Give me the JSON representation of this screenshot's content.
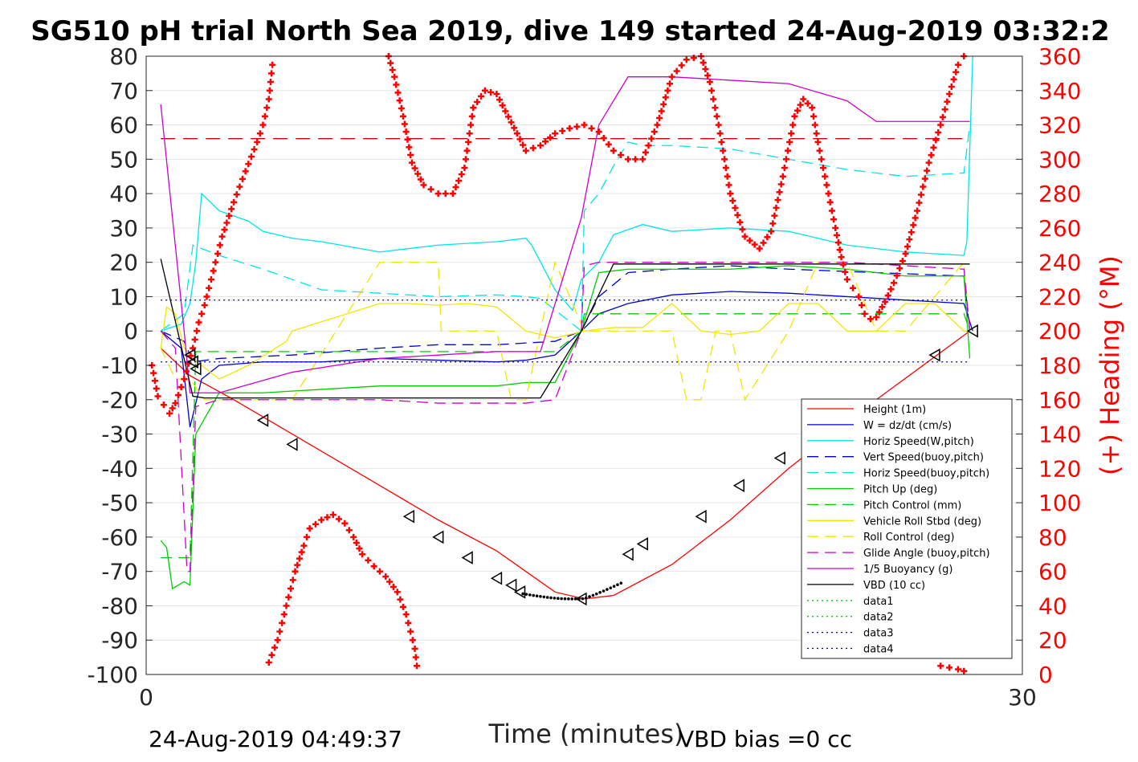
{
  "chart_data": {
    "type": "line",
    "title": "SG510 pH trial North Sea 2019, dive 149 started 24-Aug-2019 03:32:2",
    "xlabel": "Time (minutes)",
    "ylabel_right": "(+) Heading (°M)",
    "footer_left": "24-Aug-2019 04:49:37",
    "footer_right": "VBD bias =0 cc",
    "xlim": [
      0,
      30
    ],
    "ylim_left": [
      -100,
      80
    ],
    "ylim_right": [
      0,
      360
    ],
    "x_ticks": [
      0,
      30
    ],
    "y_ticks_left": [
      80,
      70,
      60,
      50,
      40,
      30,
      20,
      10,
      0,
      -10,
      -20,
      -30,
      -40,
      -50,
      -60,
      -70,
      -80,
      -90,
      -100
    ],
    "y_ticks_right": [
      360,
      340,
      320,
      300,
      280,
      260,
      240,
      220,
      200,
      180,
      160,
      140,
      120,
      100,
      80,
      60,
      40,
      20,
      0
    ],
    "grid": true,
    "legend_position": "bottom-right",
    "colors": {
      "red": "#ff0000",
      "blue": "#0000cc",
      "cyan": "#00e5e5",
      "green": "#00cc00",
      "yellow": "#f2e600",
      "magenta": "#cc00cc",
      "black": "#000000"
    },
    "series": [
      {
        "name": "Height (1m)",
        "color": "#ff0000",
        "style": "solid",
        "x": [
          0.5,
          1.5,
          3,
          5,
          8,
          10,
          12,
          13,
          14,
          15,
          16,
          18,
          20,
          22,
          25,
          28.2
        ],
        "y": [
          -5,
          -13,
          -20,
          -30,
          -45,
          -55,
          -64,
          -70,
          -76,
          -78,
          -77,
          -68,
          -55,
          -40,
          -20,
          0
        ]
      },
      {
        "name": "W = dz/dt (cm/s)",
        "color": "#0000cc",
        "style": "solid",
        "x": [
          0.5,
          1.2,
          1.5,
          1.9,
          2.5,
          4,
          6,
          8,
          10,
          12,
          13,
          14,
          14.9,
          15.5,
          16.5,
          18,
          20,
          22,
          25,
          28.0,
          28.3
        ],
        "y": [
          0,
          -5,
          -28,
          -14,
          -10,
          -9,
          -9,
          -8,
          -8.5,
          -9,
          -8.5,
          -7,
          0,
          5,
          8,
          10.5,
          11.5,
          11,
          9.5,
          8,
          0
        ]
      },
      {
        "name": "Horiz Speed(W,pitch)",
        "color": "#00e5e5",
        "style": "solid",
        "x": [
          0.5,
          1.2,
          1.5,
          1.7,
          1.9,
          2.5,
          3.5,
          4,
          5,
          6,
          8,
          10,
          12,
          13,
          13.2,
          14,
          14.6,
          14.9,
          15.5,
          16,
          17,
          18,
          20,
          22,
          24,
          26,
          28,
          28.1,
          28.3
        ],
        "y": [
          0,
          2,
          8,
          20,
          40,
          35,
          32,
          29,
          27,
          26,
          23,
          25,
          26,
          27,
          25,
          12,
          6,
          15,
          20,
          28,
          31,
          29,
          30,
          29,
          25,
          23,
          22,
          26,
          80
        ]
      },
      {
        "name": "Vert Speed(buoy,pitch)",
        "color": "#0000cc",
        "style": "dash",
        "x": [
          0.5,
          1.3,
          1.6,
          2.5,
          5,
          8,
          10,
          12,
          14,
          14.9,
          15.5,
          16.5,
          18,
          20,
          22,
          25,
          28,
          28.2
        ],
        "y": [
          0,
          -3,
          -9,
          -8,
          -7,
          -5,
          -4,
          -4,
          -3,
          0,
          10,
          17,
          18,
          19,
          18,
          17,
          16,
          0
        ]
      },
      {
        "name": "Horiz Speed(buoy,pitch)",
        "color": "#00e5e5",
        "style": "dash",
        "x": [
          0.5,
          1.3,
          1.6,
          2.5,
          4,
          5,
          6,
          8,
          10,
          12,
          13,
          13.5,
          14.9,
          15,
          15.5,
          16,
          16.5,
          17,
          18,
          20,
          22,
          24,
          26,
          28,
          28.2
        ],
        "y": [
          0,
          5,
          25,
          22,
          18,
          15,
          12,
          11,
          10,
          10.5,
          10,
          9.5,
          0,
          35,
          40,
          48,
          55,
          54,
          54,
          53,
          50,
          47,
          45,
          46,
          60
        ]
      },
      {
        "name": "Pitch Up (deg)",
        "color": "#00cc00",
        "style": "solid",
        "x": [
          0.5,
          0.7,
          0.9,
          1.3,
          1.5,
          1.7,
          2.5,
          4,
          6,
          8,
          10,
          12,
          13,
          14,
          14.9,
          15.5,
          16.5,
          18,
          20,
          22,
          24,
          26,
          28,
          28.2
        ],
        "y": [
          -61,
          -63,
          -75,
          -73,
          -74,
          -30,
          -18,
          -18,
          -17,
          -16,
          -16,
          -16,
          -15,
          -15,
          0,
          17,
          18,
          18,
          18,
          19,
          18,
          16,
          16,
          -8
        ]
      },
      {
        "name": "Pitch Control (mm)",
        "color": "#00cc00",
        "style": "dash",
        "x": [
          0.5,
          1.0,
          1.4,
          1.5,
          1.7,
          2.5,
          5,
          8,
          10,
          12,
          13,
          14,
          14.9,
          15,
          16,
          18,
          20,
          22,
          24,
          26,
          28,
          28.2
        ],
        "y": [
          -66,
          -66,
          -66,
          -66,
          -6,
          -6,
          -6,
          -6,
          -6,
          -6,
          -6,
          -6,
          0,
          5,
          5,
          5,
          5,
          5,
          5,
          5,
          5,
          0
        ]
      },
      {
        "name": "Vehicle Roll Stbd (deg)",
        "color": "#f2e600",
        "style": "solid",
        "x": [
          0.5,
          0.7,
          1.0,
          1.3,
          1.6,
          2.5,
          3.5,
          4.8,
          5,
          8,
          9,
          10,
          11,
          12,
          13,
          14,
          15,
          16,
          17,
          18,
          19,
          20,
          21,
          22,
          23,
          24,
          25,
          26,
          27,
          28,
          28.2
        ],
        "y": [
          -5,
          7,
          5,
          -5,
          -8,
          -14,
          -10,
          -3,
          0,
          8,
          8,
          7.5,
          8,
          7,
          0,
          -2,
          0,
          1,
          1,
          8,
          0,
          -1,
          0,
          8,
          8,
          0,
          0,
          8,
          8,
          0,
          0
        ]
      },
      {
        "name": "Roll Control (deg)",
        "color": "#f2e600",
        "style": "dash",
        "x": [
          0.5,
          1.0,
          1.5,
          2.0,
          4.8,
          5,
          8,
          9,
          10,
          10.1,
          12,
          12.5,
          13,
          14,
          15,
          16,
          18,
          18.5,
          19,
          19.5,
          20,
          20.5,
          22,
          23,
          24,
          25,
          26,
          28,
          28.2
        ],
        "y": [
          -5,
          -14,
          -14,
          -20,
          -20,
          -20,
          20,
          20,
          20,
          0,
          0,
          -20,
          -20,
          20,
          0,
          0,
          0,
          -20,
          -20,
          0,
          0,
          -20,
          0,
          20,
          20,
          0,
          0,
          20,
          0
        ]
      },
      {
        "name": "Glide Angle (buoy,pitch)",
        "color": "#cc00cc",
        "style": "dash",
        "x": [
          0.5,
          1.0,
          1.4,
          1.5,
          1.7,
          2.5,
          4,
          6,
          8,
          10,
          12,
          13,
          14,
          14.9,
          15,
          15.5,
          16,
          18,
          20,
          22,
          24,
          26,
          28,
          28.2
        ],
        "y": [
          0,
          -5,
          -70,
          -70,
          -22,
          -20,
          -20,
          -20,
          -20,
          -21,
          -21,
          -21,
          -20,
          0,
          19,
          20,
          20,
          20,
          20,
          20,
          20,
          19,
          18,
          0
        ]
      },
      {
        "name": "1/5 Buoyancy (g)",
        "color": "#cc00cc",
        "style": "solid",
        "x": [
          0.5,
          1.3,
          1.5,
          2.5,
          5,
          8,
          10,
          12,
          13,
          13.5,
          14.9,
          15.5,
          16.5,
          18,
          20,
          22,
          24,
          25,
          27,
          28.2
        ],
        "y": [
          66,
          0,
          -18,
          -18,
          -12,
          -8,
          -7,
          -6,
          -6,
          -6,
          33,
          60,
          74,
          74,
          73,
          72,
          67,
          61,
          61,
          61
        ]
      },
      {
        "name": "VBD (10 cc)",
        "color": "#000000",
        "style": "solid",
        "x": [
          0.5,
          1.6,
          2.0,
          8,
          12,
          13.5,
          14.9,
          16,
          18,
          20,
          22,
          24,
          26,
          28.2
        ],
        "y": [
          21,
          -19,
          -19.5,
          -19.5,
          -19.5,
          -19.5,
          0,
          19.5,
          19.5,
          19.5,
          19.5,
          19.5,
          19.5,
          19.5
        ]
      },
      {
        "name": "data1",
        "color": "#00cc00",
        "style": "dot",
        "x": [],
        "y": []
      },
      {
        "name": "data2",
        "color": "#00cc00",
        "style": "dot",
        "x": [],
        "y": []
      },
      {
        "name": "data3",
        "color": "#000080",
        "style": "dot",
        "x": [
          0.5,
          28.2
        ],
        "y": [
          9,
          9
        ]
      },
      {
        "name": "data4",
        "color": "#000080",
        "style": "dot",
        "x": [
          0.5,
          28.2
        ],
        "y": [
          -9,
          -9
        ]
      }
    ],
    "extra_lines": [
      {
        "color": "#cc0000",
        "style": "longdash",
        "x": [
          0.5,
          28.2
        ],
        "y": [
          56,
          56
        ]
      }
    ],
    "markers": {
      "color": "#000000",
      "x": [
        1.5,
        1.6,
        1.7,
        4,
        5,
        9,
        10,
        11,
        12,
        12.5,
        12.8,
        14.9,
        16.5,
        17,
        19,
        20.3,
        21.7,
        27,
        28.3
      ],
      "y": [
        -7,
        -9,
        -11,
        -26,
        -33,
        -54,
        -60,
        -66,
        -72,
        -74,
        -76,
        -78,
        -65,
        -62,
        -54,
        -45,
        -37,
        -7,
        0
      ]
    },
    "heading": {
      "label": "(+) Heading (°M)",
      "color": "#ff0000",
      "x": [
        0.1,
        0.3,
        0.5,
        0.7,
        0.9,
        1.2,
        1.5,
        1.8,
        2.2,
        2.6,
        3.0,
        3.4,
        3.8,
        4.1,
        4.4
      ],
      "y": [
        180,
        160,
        155,
        150,
        158,
        170,
        180,
        198,
        228,
        262,
        290,
        312,
        320,
        340,
        360
      ],
      "segments": [
        {
          "x": [
            0.2,
            0.4,
            0.6,
            0.8,
            1.0,
            1.3,
            1.6,
            1.8,
            2.0,
            2.3,
            2.6,
            3.0,
            3.4,
            3.8,
            4.0,
            4.2,
            4.35
          ],
          "y": [
            180,
            162,
            157,
            152,
            158,
            172,
            190,
            205,
            215,
            235,
            255,
            275,
            293,
            310,
            320,
            335,
            360
          ]
        },
        {
          "x": [
            4.2,
            4.5,
            4.8,
            5.1,
            5.4,
            5.6,
            6.0,
            6.4,
            6.8,
            7.1,
            7.4,
            7.8,
            8.2,
            8.6,
            8.9,
            9.2,
            9.3
          ],
          "y": [
            7,
            20,
            40,
            60,
            75,
            85,
            90,
            93,
            88,
            80,
            70,
            63,
            57,
            48,
            35,
            15,
            0
          ]
        },
        {
          "x": [
            8.3,
            8.5,
            8.8,
            9.1,
            9.5,
            10,
            10.5,
            10.9,
            11.2,
            11.6,
            12,
            12.3,
            12.7,
            13.0,
            13.5,
            14,
            14.5,
            15,
            15.5,
            16,
            16.5,
            17,
            17.5,
            18,
            18.5,
            19,
            19.3,
            19.6,
            20,
            20.5,
            21,
            21.4,
            21.8,
            22.2,
            22.5,
            22.8,
            23,
            23.3,
            23.6,
            23.8,
            24.0,
            24.2,
            24.4,
            24.6,
            24.8,
            25,
            25.3,
            25.6,
            26,
            26.4,
            26.8,
            27.2,
            27.5,
            27.8,
            28.0,
            28.2
          ],
          "y": [
            360,
            348,
            325,
            298,
            285,
            280,
            280,
            295,
            330,
            340,
            338,
            328,
            315,
            305,
            308,
            315,
            318,
            320,
            316,
            305,
            300,
            300,
            320,
            348,
            358,
            360,
            345,
            320,
            280,
            255,
            248,
            258,
            290,
            325,
            335,
            330,
            310,
            285,
            260,
            243,
            230,
            225,
            220,
            210,
            207,
            208,
            217,
            228,
            245,
            270,
            298,
            320,
            338,
            355,
            360,
            360
          ]
        },
        {
          "x": [
            27.2,
            27.5,
            27.8,
            28.0,
            28.2
          ],
          "y": [
            5,
            4,
            3,
            2,
            0
          ]
        }
      ]
    }
  }
}
